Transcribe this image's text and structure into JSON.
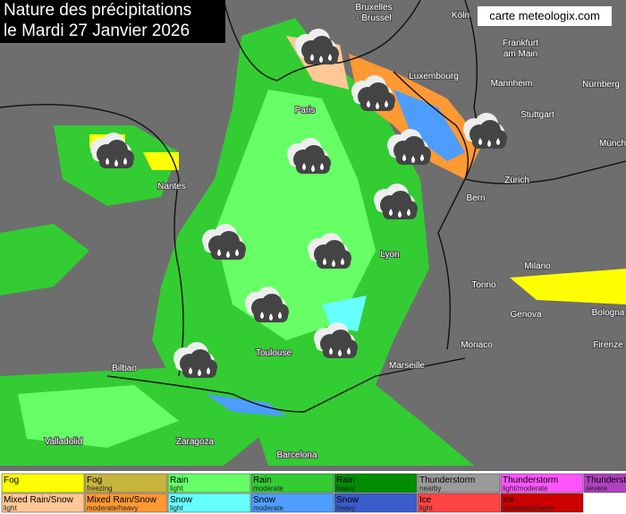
{
  "title_lines": [
    "Nature des précipitations",
    "le Mardi 27 Janvier 2026"
  ],
  "brand": "carte meteologix.com",
  "cities": [
    [
      "Bruxelles",
      "- Brussel"
    ],
    [
      "Köln"
    ],
    [
      "Frankfurt",
      "am Main"
    ],
    [
      "Luxembourg"
    ],
    [
      "Mannheim"
    ],
    [
      "Nürnberg"
    ],
    [
      "Paris"
    ],
    [
      "Stuttgart"
    ],
    [
      "Münch"
    ],
    [
      "Nantes"
    ],
    [
      "Zürich"
    ],
    [
      "Bern"
    ],
    [
      "Lyon"
    ],
    [
      "Milano"
    ],
    [
      "Torino"
    ],
    [
      "Genova"
    ],
    [
      "Bologna"
    ],
    [
      "Monaco"
    ],
    [
      "Firenze"
    ],
    [
      "Bilbao"
    ],
    [
      "Toulouse"
    ],
    [
      "Marseille"
    ],
    [
      "Valladolid"
    ],
    [
      "Zaragoza"
    ],
    [
      "Barcelona"
    ]
  ],
  "legend": [
    {
      "name": "Fog",
      "color": "#ffff00"
    },
    {
      "name": "Fog",
      "sub": "freezing",
      "color": "#c8b43c"
    },
    {
      "name": "Rain",
      "sub": "light",
      "color": "#66ff66"
    },
    {
      "name": "Rain",
      "sub": "moderate",
      "color": "#33cc33"
    },
    {
      "name": "Rain",
      "sub": "heavy",
      "color": "#008c00"
    },
    {
      "name": "Thunderstorm",
      "sub": "nearby",
      "color": "#9a9a9a"
    },
    {
      "name": "Thunderstorm",
      "sub": "light/moderate",
      "color": "#ff55ff"
    },
    {
      "name": "Thunderstorm",
      "sub": "severe",
      "color": "#b040c0"
    },
    {
      "name": "Mixed Rain/Snow",
      "sub": "light",
      "color": "#ffc896"
    },
    {
      "name": "Mixed Rain/Snow",
      "sub": "moderate/heavy",
      "color": "#ff9933"
    },
    {
      "name": "Snow",
      "sub": "light",
      "color": "#66ffff"
    },
    {
      "name": "Snow",
      "sub": "moderate",
      "color": "#4d9dff"
    },
    {
      "name": "Snow",
      "sub": "heavy",
      "color": "#3a5ccc"
    },
    {
      "name": "Ice",
      "sub": "light",
      "color": "#ff4444"
    },
    {
      "name": "Ice",
      "sub": "moderate/heavy",
      "color": "#cc0000"
    }
  ]
}
